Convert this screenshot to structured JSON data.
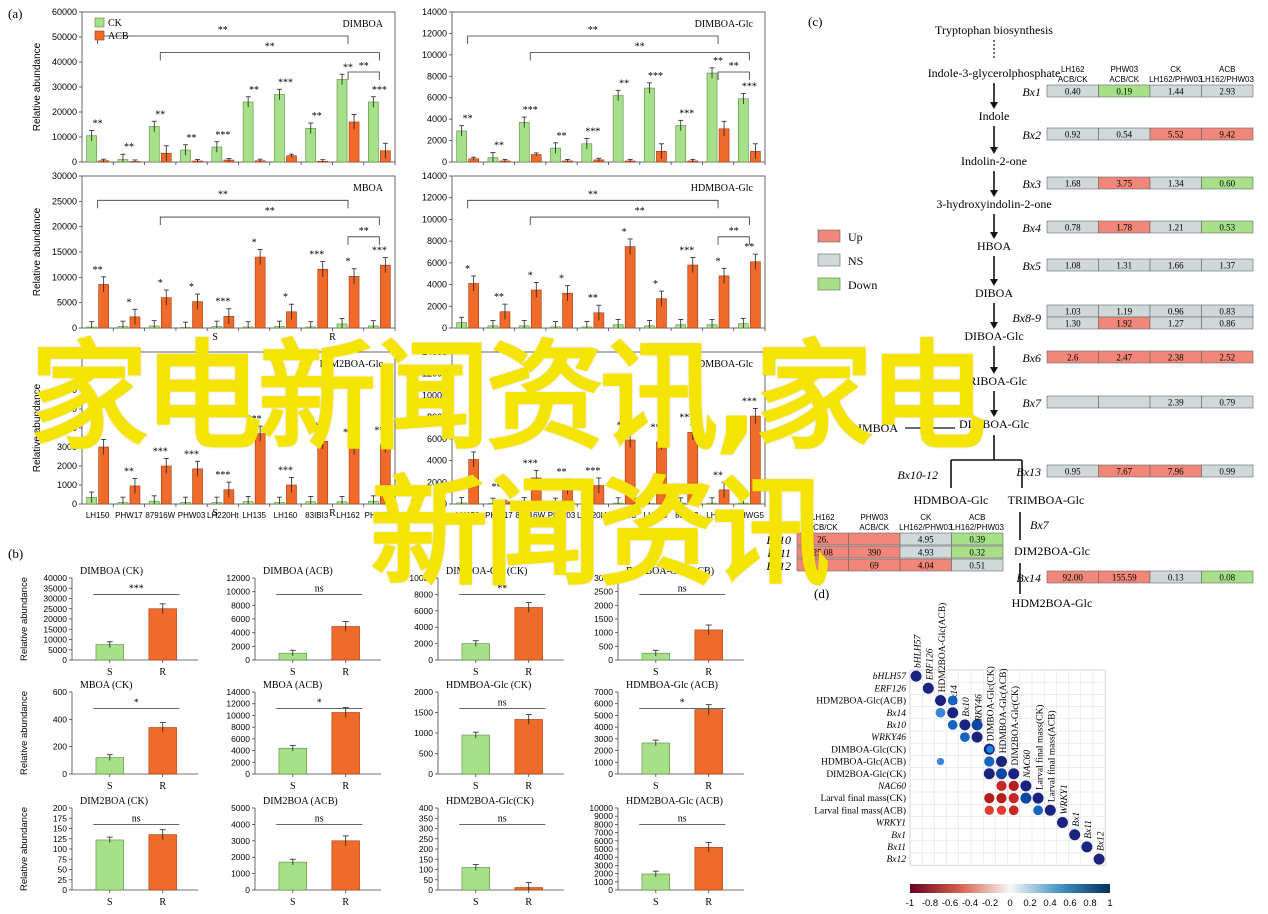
{
  "panel_labels": {
    "a": "(a)",
    "b": "(b)",
    "c": "(c)",
    "d": "(d)"
  },
  "legend_a": {
    "ck": "CK",
    "acb": "ACB",
    "ck_color": "#a6e08a",
    "acb_color": "#f06a2a"
  },
  "ylabel": "Relative abundance",
  "chart_data": [
    {
      "type": "bar",
      "id": "a1",
      "title": "DIMBOA",
      "ylim": [
        0,
        60000
      ],
      "ticks": [
        0,
        10000,
        20000,
        30000,
        40000,
        50000,
        60000
      ],
      "categories": [
        "LH150",
        "PHW17",
        "87916W",
        "PHW03",
        "LH220Ht",
        "LH135",
        "LH160",
        "83IBI3",
        "LH162",
        "PHWG5"
      ],
      "series": [
        {
          "name": "CK",
          "values": [
            10500,
            1000,
            14200,
            4800,
            6000,
            24000,
            27000,
            13500,
            33000,
            24000
          ]
        },
        {
          "name": "ACB",
          "values": [
            500,
            200,
            3500,
            400,
            800,
            500,
            2500,
            300,
            16000,
            4500
          ]
        }
      ],
      "sig": [
        "**",
        "**",
        "**",
        "**",
        "***",
        "**",
        "***",
        "**",
        "**",
        "***"
      ],
      "groups": [],
      "brackets": [
        "**",
        "**",
        "**"
      ]
    },
    {
      "type": "bar",
      "id": "a2",
      "title": "DIMBOA-Glc",
      "ylim": [
        0,
        14000
      ],
      "ticks": [
        0,
        2000,
        4000,
        6000,
        8000,
        10000,
        12000,
        14000
      ],
      "categories": [
        "LH150",
        "PHW17",
        "87916W",
        "PHW03",
        "LH220Ht",
        "LH135",
        "LH160",
        "83IBI3",
        "LH162",
        "PHWG5"
      ],
      "series": [
        {
          "name": "CK",
          "values": [
            2900,
            400,
            3700,
            1300,
            1700,
            6200,
            6900,
            3400,
            8300,
            5900
          ]
        },
        {
          "name": "ACB",
          "values": [
            300,
            100,
            700,
            100,
            200,
            100,
            1000,
            100,
            3100,
            1000
          ]
        }
      ],
      "sig": [
        "**",
        "**",
        "***",
        "**",
        "***",
        "**",
        "***",
        "***",
        "**",
        "***"
      ],
      "groups": [],
      "brackets": [
        "**",
        "**",
        "**"
      ]
    },
    {
      "type": "bar",
      "id": "a3",
      "title": "MBOA",
      "ylim": [
        0,
        30000
      ],
      "ticks": [
        0,
        5000,
        10000,
        15000,
        20000,
        25000,
        30000
      ],
      "categories": [
        "LH150",
        "PHW17",
        "87916W",
        "PHW03",
        "LH220Ht",
        "LH135",
        "LH160",
        "83IBI3",
        "LH162",
        "PHWG5"
      ],
      "series": [
        {
          "name": "CK",
          "values": [
            200,
            300,
            400,
            100,
            300,
            200,
            300,
            200,
            800,
            400
          ]
        },
        {
          "name": "ACB",
          "values": [
            8600,
            2200,
            6000,
            5200,
            2300,
            14000,
            3200,
            11600,
            10200,
            12400
          ]
        }
      ],
      "sig": [
        "**",
        "*",
        "*",
        "*",
        "***",
        "*",
        "*",
        "***",
        "*",
        "***"
      ],
      "groups": [
        "S",
        "R"
      ],
      "brackets": [
        "**",
        "**",
        "**"
      ]
    },
    {
      "type": "bar",
      "id": "a4",
      "title": "HDMBOA-Glc",
      "ylim": [
        0,
        14000
      ],
      "ticks": [
        0,
        2000,
        4000,
        6000,
        8000,
        10000,
        12000,
        14000
      ],
      "categories": [
        "LH150",
        "PHW17",
        "87916W",
        "PHW03",
        "LH220Ht",
        "LH135",
        "LH160",
        "83IBI3",
        "LH162",
        "PHWG5"
      ],
      "series": [
        {
          "name": "CK",
          "values": [
            500,
            200,
            200,
            100,
            100,
            300,
            200,
            300,
            300,
            400
          ]
        },
        {
          "name": "ACB",
          "values": [
            4100,
            1500,
            3500,
            3200,
            1400,
            7500,
            2700,
            5800,
            4800,
            6100
          ]
        }
      ],
      "sig": [
        "*",
        "**",
        "*",
        "*",
        "**",
        "*",
        "*",
        "***",
        "*",
        "**"
      ],
      "groups": [],
      "brackets": [
        "**",
        "**",
        "**"
      ]
    },
    {
      "type": "bar",
      "id": "a5",
      "title": "DIM2BOA-Glc",
      "ylim": [
        0,
        8000
      ],
      "ticks": [
        0,
        1000,
        2000,
        3000,
        4000,
        5000,
        6000,
        7000,
        8000
      ],
      "categories": [
        "LH150",
        "PHW17",
        "87916W",
        "PHW03",
        "LH220Ht",
        "LH135",
        "LH160",
        "83IBI3",
        "LH162",
        "PHWG5"
      ],
      "series": [
        {
          "name": "CK",
          "values": [
            350,
            80,
            150,
            80,
            80,
            120,
            80,
            120,
            120,
            150
          ]
        },
        {
          "name": "ACB",
          "values": [
            3000,
            950,
            2000,
            1850,
            750,
            3700,
            1000,
            3300,
            3000,
            3100
          ]
        }
      ],
      "sig": [
        "*",
        "**",
        "***",
        "***",
        "***",
        "***",
        "***",
        "***",
        "**",
        "**"
      ],
      "groups": [
        "S",
        "R"
      ],
      "brackets": []
    },
    {
      "type": "bar",
      "id": "a6",
      "title": "HDMBOA-Glc",
      "ylim": [
        0,
        14000
      ],
      "ticks": [
        0,
        2000,
        4000,
        6000,
        8000,
        10000,
        12000,
        14000
      ],
      "categories": [
        "LH150",
        "PHW17",
        "87916W",
        "PHW03",
        "LH220Ht",
        "LH135",
        "LH160",
        "83IBI3",
        "LH162",
        "PHWG5"
      ],
      "series": [
        {
          "name": "CK",
          "values": [
            100,
            50,
            100,
            50,
            50,
            80,
            50,
            80,
            80,
            80
          ]
        },
        {
          "name": "ACB",
          "values": [
            4100,
            200,
            2400,
            1600,
            1700,
            5900,
            5700,
            6600,
            1300,
            8100
          ]
        }
      ],
      "sig": [
        "*",
        "***",
        "***",
        "**",
        "***",
        "***",
        "**",
        "***",
        "**",
        "***"
      ],
      "groups": [],
      "brackets": []
    },
    {
      "type": "bar",
      "id": "b1",
      "title": "DIMBOA (CK)",
      "ylim": [
        0,
        40000
      ],
      "ticks": [
        0,
        5000,
        10000,
        15000,
        20000,
        25000,
        30000,
        35000,
        40000
      ],
      "categories": [
        "S",
        "R"
      ],
      "values": [
        7500,
        25000
      ],
      "sig": "***"
    },
    {
      "type": "bar",
      "id": "b2",
      "title": "DIMBOA (ACB)",
      "ylim": [
        0,
        12000
      ],
      "ticks": [
        0,
        2000,
        4000,
        6000,
        8000,
        10000,
        12000
      ],
      "categories": [
        "S",
        "R"
      ],
      "values": [
        1000,
        4900
      ],
      "sig": "ns"
    },
    {
      "type": "bar",
      "id": "b3",
      "title": "DIMBOA-Glc (CK)",
      "ylim": [
        0,
        10000
      ],
      "ticks": [
        0,
        2000,
        4000,
        6000,
        8000,
        10000
      ],
      "categories": [
        "S",
        "R"
      ],
      "values": [
        2000,
        6400
      ],
      "sig": "**"
    },
    {
      "type": "bar",
      "id": "b4",
      "title": "DIMBOA-Glc (ACB)",
      "ylim": [
        0,
        3000
      ],
      "ticks": [
        0,
        500,
        1000,
        1500,
        2000,
        2500,
        3000
      ],
      "categories": [
        "S",
        "R"
      ],
      "values": [
        250,
        1100
      ],
      "sig": "ns"
    },
    {
      "type": "bar",
      "id": "b5",
      "title": "MBOA (CK)",
      "ylim": [
        0,
        600
      ],
      "ticks": [
        0,
        200,
        400,
        600
      ],
      "categories": [
        "S",
        "R"
      ],
      "values": [
        120,
        340
      ],
      "sig": "*"
    },
    {
      "type": "bar",
      "id": "b6",
      "title": "MBOA (ACB)",
      "ylim": [
        0,
        14000
      ],
      "ticks": [
        0,
        2000,
        4000,
        6000,
        8000,
        10000,
        12000,
        14000
      ],
      "categories": [
        "S",
        "R"
      ],
      "values": [
        4400,
        10500
      ],
      "sig": "*"
    },
    {
      "type": "bar",
      "id": "b7",
      "title": "HDMBOA-Glc (CK)",
      "ylim": [
        0,
        2000
      ],
      "ticks": [
        0,
        500,
        1000,
        1500,
        2000
      ],
      "categories": [
        "S",
        "R"
      ],
      "values": [
        950,
        1330
      ],
      "sig": "ns"
    },
    {
      "type": "bar",
      "id": "b8",
      "title": "HDMBOA-Glc (ACB)",
      "ylim": [
        0,
        7000
      ],
      "ticks": [
        0,
        1000,
        2000,
        3000,
        4000,
        5000,
        6000,
        7000
      ],
      "categories": [
        "S",
        "R"
      ],
      "values": [
        2650,
        5500
      ],
      "sig": "*"
    },
    {
      "type": "bar",
      "id": "b9",
      "title": "DIM2BOA (CK)",
      "ylim": [
        0,
        200
      ],
      "ticks": [
        0,
        25,
        50,
        75,
        100,
        125,
        150,
        175,
        200
      ],
      "categories": [
        "S",
        "R"
      ],
      "values": [
        122,
        135
      ],
      "sig": "ns"
    },
    {
      "type": "bar",
      "id": "b10",
      "title": "DIM2BOA (ACB)",
      "ylim": [
        0,
        5000
      ],
      "ticks": [
        0,
        1000,
        2000,
        3000,
        4000,
        5000
      ],
      "categories": [
        "S",
        "R"
      ],
      "values": [
        1700,
        3000
      ],
      "sig": "ns"
    },
    {
      "type": "bar",
      "id": "b11",
      "title": "HDM2BOA-Glc(CK)",
      "ylim": [
        0,
        400
      ],
      "ticks": [
        0,
        50,
        100,
        150,
        200,
        250,
        300,
        350,
        400
      ],
      "categories": [
        "S",
        "R"
      ],
      "values": [
        110,
        12
      ],
      "sig": "ns"
    },
    {
      "type": "bar",
      "id": "b12",
      "title": "HDM2BOA-Glc (ACB)",
      "ylim": [
        0,
        10000
      ],
      "ticks": [
        0,
        1000,
        2000,
        3000,
        4000,
        5000,
        6000,
        7000,
        8000,
        9000,
        10000
      ],
      "categories": [
        "S",
        "R"
      ],
      "values": [
        1950,
        5200
      ],
      "sig": "ns"
    },
    {
      "type": "heatmap",
      "id": "d",
      "labels": [
        "bHLH57",
        "ERF126",
        "HDM2BOA-Glc(ACB)",
        "Bx14",
        "Bx10",
        "WRKY46",
        "DIMBOA-Glc(CK)",
        "HDMBOA-Glc(ACB)",
        "DIM2BOA-Glc(CK)",
        "NAC60",
        "Larval final mass(CK)",
        "Larval final mass(ACB)",
        "WRKY1",
        "Bx1",
        "Bx11",
        "Bx12"
      ],
      "colorbar_ticks": [
        "-1",
        "-0.8",
        "-0.6",
        "-0.4",
        "-0.2",
        "0",
        "0.2",
        "0.4",
        "0.6",
        "0.8",
        "1"
      ]
    }
  ],
  "pathway": {
    "top": "Tryptophan biosynthesis",
    "nodes": [
      "Indole-3-glycerolphosphate",
      "Indole",
      "Indolin-2-one",
      "3-hydroxyindolin-2-one",
      "HBOA",
      "DIBOA",
      "DIBOA-Glc",
      "TRIBOA-Glc",
      "DIMBOA-Glc",
      "HDMBOA-Glc",
      "TRIMBOA-Glc",
      "DIM2BOA-Glc",
      "HDM2BOA-Glc"
    ],
    "side_node": "DIMBOA",
    "headers": [
      "LH162\nACB/CK",
      "PHW03\nACB/CK",
      "CK\nLH162/PHW03",
      "ACB\nLH162/PHW03"
    ],
    "legend": [
      {
        "label": "Up",
        "color": "#f0877a"
      },
      {
        "label": "NS",
        "color": "#d0d8da"
      },
      {
        "label": "Down",
        "color": "#a8e08a"
      }
    ],
    "genes": [
      {
        "name": "Bx1",
        "rows": [
          [
            "0.40",
            "0.19",
            "1.44",
            "2.93"
          ]
        ],
        "status": [
          [
            "n",
            "d",
            "n",
            "n"
          ]
        ]
      },
      {
        "name": "Bx2",
        "rows": [
          [
            "0.92",
            "0.54",
            "5.52",
            "9.42"
          ]
        ],
        "status": [
          [
            "n",
            "n",
            "u",
            "u"
          ]
        ]
      },
      {
        "name": "Bx3",
        "rows": [
          [
            "1.68",
            "3.75",
            "1.34",
            "0.60"
          ]
        ],
        "status": [
          [
            "n",
            "u",
            "n",
            "d"
          ]
        ]
      },
      {
        "name": "Bx4",
        "rows": [
          [
            "0.78",
            "1.78",
            "1.21",
            "0.53"
          ]
        ],
        "status": [
          [
            "n",
            "u",
            "n",
            "d"
          ]
        ]
      },
      {
        "name": "Bx5",
        "rows": [
          [
            "1.08",
            "1.31",
            "1.66",
            "1.37"
          ]
        ],
        "status": [
          [
            "n",
            "n",
            "n",
            "n"
          ]
        ]
      },
      {
        "name": "Bx8-9",
        "rows": [
          [
            "1.03",
            "1.19",
            "0.96",
            "0.83"
          ],
          [
            "1.30",
            "1.92",
            "1.27",
            "0.86"
          ]
        ],
        "status": [
          [
            "n",
            "n",
            "n",
            "n"
          ],
          [
            "n",
            "u",
            "n",
            "n"
          ]
        ]
      },
      {
        "name": "Bx6",
        "rows": [
          [
            "2.6",
            "2.47",
            "2.38",
            "2.52"
          ]
        ],
        "status": [
          [
            "u",
            "u",
            "u",
            "u"
          ]
        ]
      },
      {
        "name": "Bx7",
        "rows": [
          [
            "",
            "",
            "2.39",
            "0.79"
          ]
        ],
        "status": [
          [
            "n",
            "n",
            "n",
            "n"
          ]
        ]
      },
      {
        "name": "Bx13",
        "rows": [
          [
            "0.95",
            "7.67",
            "7.96",
            "0.99"
          ]
        ],
        "status": [
          [
            "n",
            "u",
            "u",
            "n"
          ]
        ]
      },
      {
        "name": "Bx10",
        "rows": [
          [
            "26.",
            "",
            "4.95",
            "0.39"
          ]
        ],
        "status": [
          [
            "u",
            "u",
            "n",
            "d"
          ]
        ]
      },
      {
        "name": "Bx11",
        "rows": [
          [
            "25.08",
            "390",
            "4.93",
            "0.32"
          ]
        ],
        "status": [
          [
            "u",
            "u",
            "n",
            "d"
          ]
        ]
      },
      {
        "name": "Bx12",
        "rows": [
          [
            "33",
            "69",
            "4.04",
            "0.51"
          ]
        ],
        "status": [
          [
            "u",
            "u",
            "u",
            "n"
          ]
        ]
      },
      {
        "name": "Bx14",
        "rows": [
          [
            "92.00",
            "155.59",
            "0.13",
            "0.08"
          ]
        ],
        "status": [
          [
            "u",
            "u",
            "n",
            "d"
          ]
        ]
      }
    ],
    "labels_b10_12": [
      "Bx10-12",
      "Bx7"
    ]
  },
  "overlay": {
    "line1": "家电新闻资讯,家电",
    "line2": "新闻资讯",
    "color": "#f5e400"
  }
}
